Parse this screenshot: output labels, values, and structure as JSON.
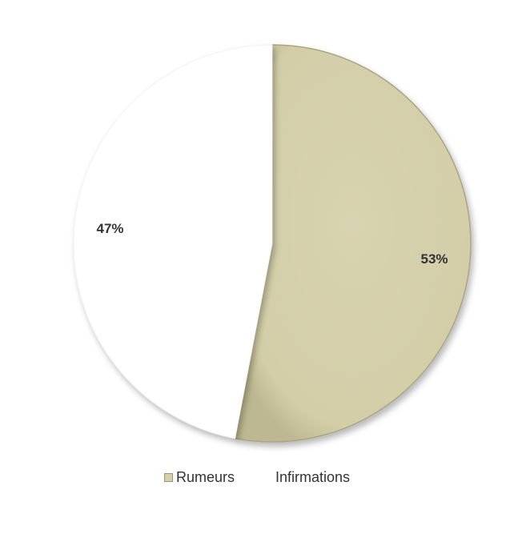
{
  "chart_data": {
    "type": "pie",
    "title": "",
    "slices": [
      {
        "name": "Rumeurs",
        "value": 53,
        "label": "53%",
        "color": "#d5d0ab",
        "start_angle_deg": 0,
        "direction": "clockwise"
      },
      {
        "name": "Infirmations",
        "value": 47,
        "label": "47%",
        "color": "#ffffff"
      }
    ],
    "legend": {
      "placement": "bottom",
      "entries": [
        "Rumeurs",
        "Infirmations"
      ]
    },
    "colors": {
      "slice_fill": "#d5d0ab",
      "slice_edge": "#a9a583",
      "label_text": "#333333"
    }
  }
}
